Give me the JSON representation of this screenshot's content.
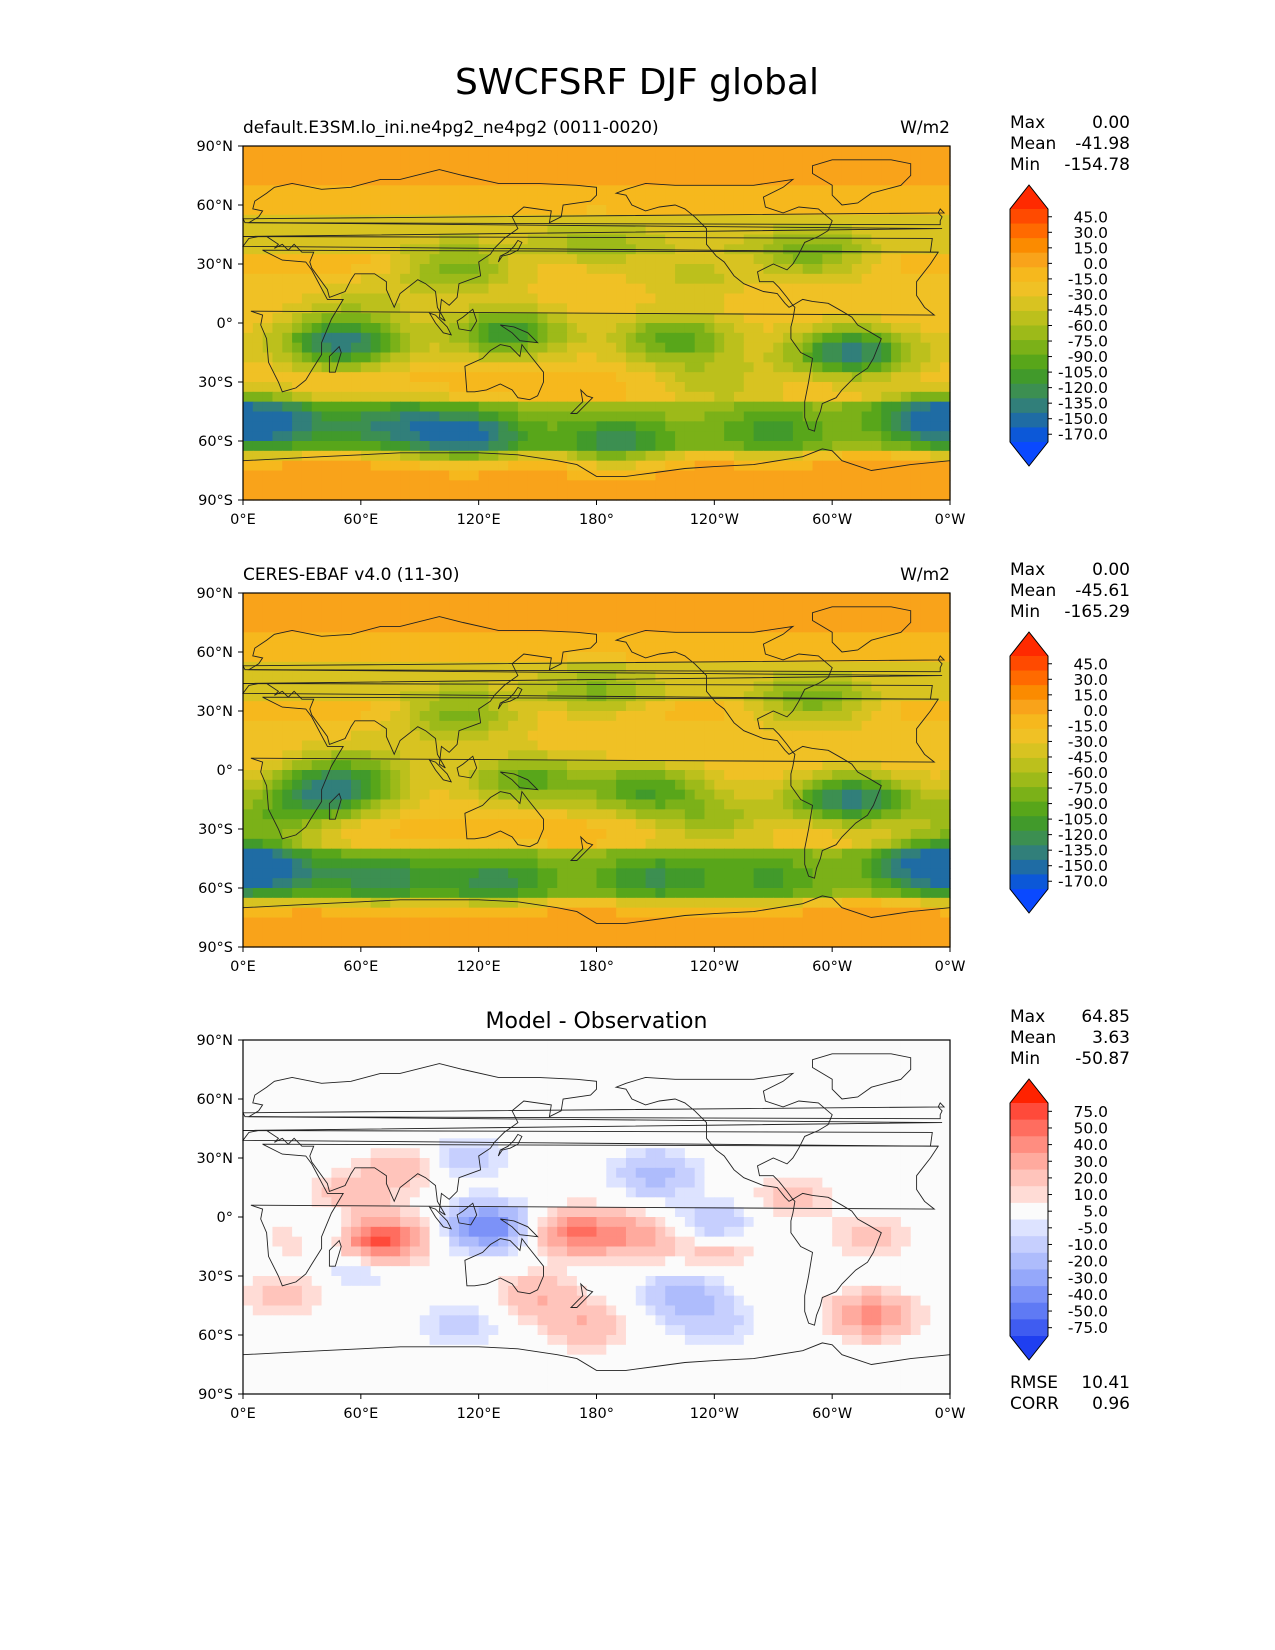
{
  "title": "SWCFSRF DJF global",
  "colors": {
    "abs_levels": [
      "#ff2a00",
      "#ff4a00",
      "#ff6a00",
      "#fb8b00",
      "#f9a31a",
      "#f6b81d",
      "#f0c125",
      "#d8c321",
      "#bcc01c",
      "#9dba19",
      "#7bb118",
      "#58a61a",
      "#419a2b",
      "#3c8f51",
      "#317f7a",
      "#1f6ca4",
      "#0c58d8",
      "#0a49ff"
    ],
    "diff_levels": [
      "#ff2200",
      "#ff4a3a",
      "#ff6d5f",
      "#ff8d80",
      "#ffaa9e",
      "#ffc4bb",
      "#ffdcd6",
      "#fbfbfb",
      "#dde3ff",
      "#c6cffe",
      "#aebcfc",
      "#95a8fa",
      "#7c92f8",
      "#5f7af4",
      "#3f5cf1",
      "#1f3ff0"
    ],
    "coast": "#222222"
  },
  "chart_data": [
    {
      "type": "heatmap",
      "panel": "test",
      "left_title": "default.E3SM.lo_ini.ne4pg2_ne4pg2 (0011-0020)",
      "right_title": "W/m2",
      "stats": [
        {
          "label": "Max",
          "value": "0.00"
        },
        {
          "label": "Mean",
          "value": "-41.98"
        },
        {
          "label": "Min",
          "value": "-154.78"
        }
      ],
      "colorbar": {
        "levels": [
          "45.0",
          "30.0",
          "15.0",
          "0.0",
          "-15.0",
          "-30.0",
          "-45.0",
          "-60.0",
          "-75.0",
          "-90.0",
          "-105.0",
          "-120.0",
          "-135.0",
          "-150.0",
          "-170.0"
        ],
        "extend": "both",
        "palette": "abs_levels"
      },
      "x_ticks": [
        "0°E",
        "60°E",
        "120°E",
        "180°",
        "120°W",
        "60°W",
        "0°W"
      ],
      "y_ticks": [
        "90°N",
        "60°N",
        "30°N",
        "0°",
        "30°S",
        "60°S",
        "90°S"
      ],
      "xlim": [
        0,
        360
      ],
      "ylim": [
        -90,
        90
      ],
      "field": [
        {
          "lon": 50,
          "lat": -10,
          "value": -150
        },
        {
          "lon": 15,
          "lat": -52,
          "value": -135
        },
        {
          "lon": 75,
          "lat": -52,
          "value": -120
        },
        {
          "lon": 115,
          "lat": -57,
          "value": -150
        },
        {
          "lon": 190,
          "lat": -60,
          "value": -120
        },
        {
          "lon": 270,
          "lat": -55,
          "value": -105
        },
        {
          "lon": 350,
          "lat": -48,
          "value": -135
        },
        {
          "lon": 310,
          "lat": -15,
          "value": -150
        },
        {
          "lon": 135,
          "lat": -5,
          "value": -120
        },
        {
          "lon": 220,
          "lat": -8,
          "value": -105
        },
        {
          "lon": 110,
          "lat": 28,
          "value": -90
        },
        {
          "lon": 180,
          "lat": 40,
          "value": -70
        },
        {
          "lon": 290,
          "lat": 35,
          "value": -90
        },
        {
          "lon": 230,
          "lat": 25,
          "value": -55
        },
        {
          "lon": 60,
          "lat": 10,
          "value": -50
        },
        {
          "lon": 240,
          "lat": -30,
          "value": -60
        }
      ]
    },
    {
      "type": "heatmap",
      "panel": "reference",
      "left_title": "CERES-EBAF v4.0 (11-30)",
      "right_title": "W/m2",
      "stats": [
        {
          "label": "Max",
          "value": "0.00"
        },
        {
          "label": "Mean",
          "value": "-45.61"
        },
        {
          "label": "Min",
          "value": "-165.29"
        }
      ],
      "colorbar": {
        "levels": [
          "45.0",
          "30.0",
          "15.0",
          "0.0",
          "-15.0",
          "-30.0",
          "-45.0",
          "-60.0",
          "-75.0",
          "-90.0",
          "-105.0",
          "-120.0",
          "-135.0",
          "-150.0",
          "-170.0"
        ],
        "extend": "both",
        "palette": "abs_levels"
      },
      "x_ticks": [
        "0°E",
        "60°E",
        "120°E",
        "180°",
        "120°W",
        "60°W",
        "0°W"
      ],
      "y_ticks": [
        "90°N",
        "60°N",
        "30°N",
        "0°",
        "30°S",
        "60°S",
        "90°S"
      ],
      "xlim": [
        0,
        360
      ],
      "ylim": [
        -90,
        90
      ],
      "field": [
        {
          "lon": 45,
          "lat": -10,
          "value": -150
        },
        {
          "lon": 10,
          "lat": -52,
          "value": -135
        },
        {
          "lon": 70,
          "lat": -55,
          "value": -120
        },
        {
          "lon": 130,
          "lat": -56,
          "value": -120
        },
        {
          "lon": 210,
          "lat": -55,
          "value": -115
        },
        {
          "lon": 270,
          "lat": -55,
          "value": -100
        },
        {
          "lon": 350,
          "lat": -48,
          "value": -140
        },
        {
          "lon": 310,
          "lat": -15,
          "value": -150
        },
        {
          "lon": 145,
          "lat": -5,
          "value": -100
        },
        {
          "lon": 205,
          "lat": -10,
          "value": -110
        },
        {
          "lon": 110,
          "lat": 28,
          "value": -90
        },
        {
          "lon": 180,
          "lat": 40,
          "value": -80
        },
        {
          "lon": 290,
          "lat": 35,
          "value": -90
        },
        {
          "lon": 240,
          "lat": -25,
          "value": -70
        },
        {
          "lon": 60,
          "lat": 5,
          "value": -55
        },
        {
          "lon": 15,
          "lat": -25,
          "value": -80
        }
      ]
    },
    {
      "type": "heatmap",
      "panel": "difference",
      "center_title": "Model - Observation",
      "stats": [
        {
          "label": "Max",
          "value": "64.85"
        },
        {
          "label": "Mean",
          "value": "3.63"
        },
        {
          "label": "Min",
          "value": "-50.87"
        }
      ],
      "colorbar": {
        "levels": [
          "75.0",
          "50.0",
          "40.0",
          "30.0",
          "20.0",
          "10.0",
          "5.0",
          "-5.0",
          "-10.0",
          "-20.0",
          "-30.0",
          "-40.0",
          "-50.0",
          "-75.0"
        ],
        "extend": "both",
        "palette": "diff_levels"
      },
      "bottom_stats": [
        {
          "label": "RMSE",
          "value": "10.41"
        },
        {
          "label": "CORR",
          "value": "0.96"
        }
      ],
      "x_ticks": [
        "0°E",
        "60°E",
        "120°E",
        "180°",
        "120°W",
        "60°W",
        "0°W"
      ],
      "y_ticks": [
        "90°N",
        "60°N",
        "30°N",
        "0°",
        "30°S",
        "60°S",
        "90°S"
      ],
      "xlim": [
        0,
        360
      ],
      "ylim": [
        -90,
        90
      ],
      "field": [
        {
          "lon": 70,
          "lat": -12,
          "value": 60
        },
        {
          "lon": 55,
          "lat": 10,
          "value": 20
        },
        {
          "lon": 80,
          "lat": 25,
          "value": 15
        },
        {
          "lon": 170,
          "lat": -8,
          "value": 40
        },
        {
          "lon": 200,
          "lat": -10,
          "value": 25
        },
        {
          "lon": 240,
          "lat": -15,
          "value": 20
        },
        {
          "lon": 150,
          "lat": -40,
          "value": 20
        },
        {
          "lon": 175,
          "lat": -55,
          "value": 20
        },
        {
          "lon": 320,
          "lat": -50,
          "value": 35
        },
        {
          "lon": 280,
          "lat": 10,
          "value": 15
        },
        {
          "lon": 320,
          "lat": -10,
          "value": 15
        },
        {
          "lon": 20,
          "lat": -40,
          "value": 15
        },
        {
          "lon": 30,
          "lat": -10,
          "value": 12
        },
        {
          "lon": 125,
          "lat": -5,
          "value": -50
        },
        {
          "lon": 115,
          "lat": 30,
          "value": -15
        },
        {
          "lon": 210,
          "lat": 22,
          "value": -25
        },
        {
          "lon": 240,
          "lat": -5,
          "value": -25
        },
        {
          "lon": 225,
          "lat": -40,
          "value": -25
        },
        {
          "lon": 45,
          "lat": -5,
          "value": -18
        },
        {
          "lon": 110,
          "lat": -55,
          "value": -15
        },
        {
          "lon": 60,
          "lat": -25,
          "value": -15
        },
        {
          "lon": 240,
          "lat": -55,
          "value": -15
        }
      ]
    }
  ]
}
